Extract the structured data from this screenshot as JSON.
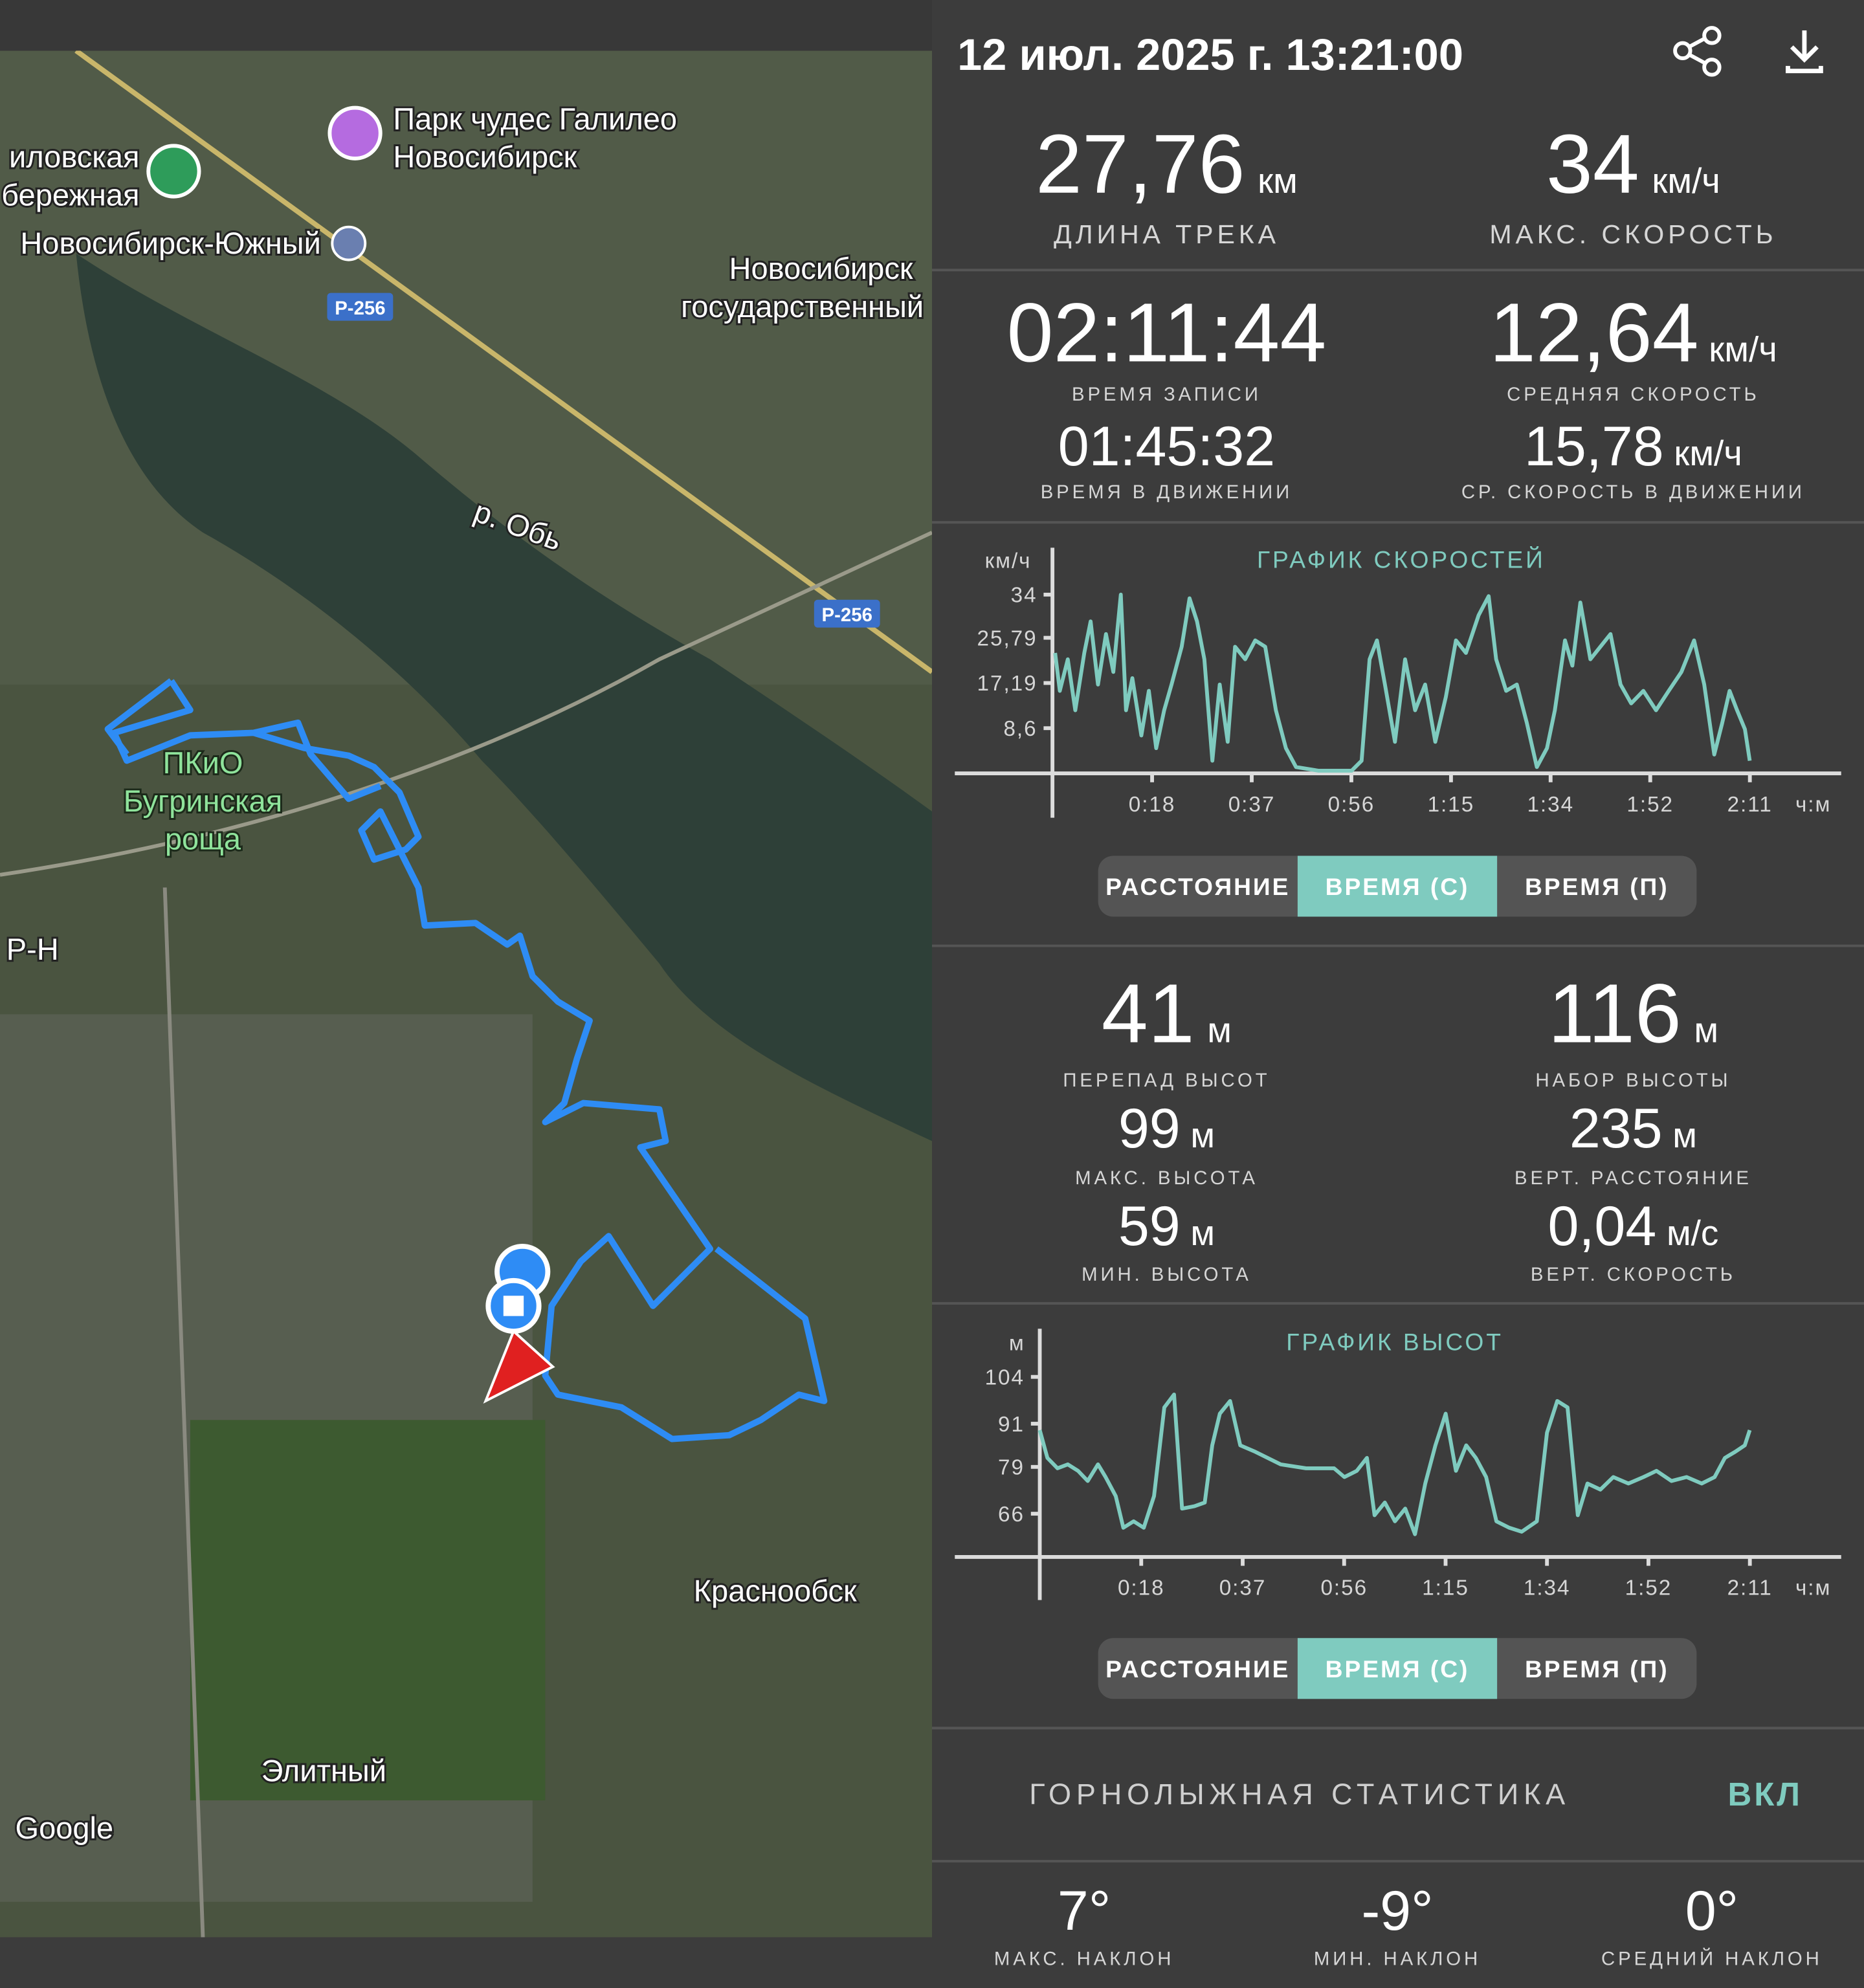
{
  "header": {
    "datetime": "12 июл. 2025 г. 13:21:00"
  },
  "map": {
    "labels": [
      "Парк чудес Галилео",
      "Новосибирск",
      "иловская",
      "бережная",
      "Новосибирск-Южный",
      "Новосибирск",
      "государственный",
      "Р-256",
      "Р-256",
      "р. Обь",
      "ПКиО",
      "Бугринская",
      "роща",
      "Р-Н",
      "Краснообск",
      "Элитный",
      "Google"
    ]
  },
  "summary": [
    {
      "value": "27,76",
      "unit": "км",
      "label": "ДЛИНА ТРЕКА"
    },
    {
      "value": "34",
      "unit": "км/ч",
      "label": "МАКС. СКОРОСТЬ"
    }
  ],
  "time_stats": [
    {
      "value": "02:11:44",
      "label": "ВРЕМЯ ЗАПИСИ"
    },
    {
      "value": "12,64",
      "unit": "км/ч",
      "label": "СРЕДНЯЯ СКОРОСТЬ"
    },
    {
      "value": "01:45:32",
      "label": "ВРЕМЯ В ДВИЖЕНИИ"
    },
    {
      "value": "15,78",
      "unit": "км/ч",
      "label": "СР. СКОРОСТЬ В ДВИЖЕНИИ"
    }
  ],
  "altitude_stats": [
    {
      "value": "41",
      "unit": "м",
      "label": "ПЕРЕПАД ВЫСОТ"
    },
    {
      "value": "116",
      "unit": "м",
      "label": "НАБОР ВЫСОТЫ"
    },
    {
      "value": "99",
      "unit": "м",
      "label": "МАКС. ВЫСОТА"
    },
    {
      "value": "235",
      "unit": "м",
      "label": "ВЕРТ. РАССТОЯНИЕ"
    },
    {
      "value": "59",
      "unit": "м",
      "label": "МИН. ВЫСОТА"
    },
    {
      "value": "0,04",
      "unit": "м/с",
      "label": "ВЕРТ. СКОРОСТЬ"
    }
  ],
  "toggles": [
    {
      "options": [
        "РАССТОЯНИЕ",
        "ВРЕМЯ (С)",
        "ВРЕМЯ (П)"
      ],
      "selected": 1
    },
    {
      "options": [
        "РАССТОЯНИЕ",
        "ВРЕМЯ (С)",
        "ВРЕМЯ (П)"
      ],
      "selected": 1
    }
  ],
  "chart_data": [
    {
      "type": "line",
      "title": "ГРАФИК СКОРОСТЕЙ",
      "y_label": "км/ч",
      "x_label": "ч:м",
      "color": "#7fcbbf",
      "xlim": [
        0,
        131.73
      ],
      "ylim": [
        0,
        34
      ],
      "xticks": [
        {
          "value": 18.82,
          "label": "0:18"
        },
        {
          "value": 37.64,
          "label": "0:37"
        },
        {
          "value": 56.46,
          "label": "0:56"
        },
        {
          "value": 75.28,
          "label": "1:15"
        },
        {
          "value": 94.09,
          "label": "1:34"
        },
        {
          "value": 112.91,
          "label": "1:52"
        },
        {
          "value": 131.73,
          "label": "2:11"
        }
      ],
      "yticks": [
        {
          "value": 8.6,
          "label": "8,6"
        },
        {
          "value": 17.19,
          "label": "17,19"
        },
        {
          "value": 25.79,
          "label": "25,79"
        },
        34
      ],
      "x": [
        0.5,
        1.4,
        2.9,
        4.3,
        6,
        7.2,
        8.6,
        10.1,
        11.5,
        12.9,
        13.9,
        15.1,
        16.8,
        18.2,
        19.6,
        21.1,
        22.5,
        24.4,
        25.9,
        27.3,
        28.7,
        30.2,
        31.6,
        33.1,
        34.5,
        36.4,
        38.3,
        40.2,
        42.2,
        44.1,
        46,
        50.3,
        56.5,
        58.4,
        59.9,
        61.3,
        62.8,
        64.7,
        66.6,
        68.5,
        70.4,
        72.3,
        74.3,
        76.2,
        78.1,
        80.5,
        82.4,
        83.8,
        85.7,
        87.7,
        89.6,
        91.5,
        93.4,
        94.9,
        96.8,
        98.2,
        99.7,
        101.6,
        103.5,
        105.4,
        107.3,
        109.3,
        111.6,
        114,
        116.4,
        118.8,
        121.2,
        123.1,
        125,
        126.5,
        127.9,
        129.3,
        130.8,
        131.7
      ],
      "values": [
        22.9,
        15.7,
        21.7,
        12,
        22.9,
        28.9,
        16.9,
        26.5,
        19.3,
        34,
        12,
        18.1,
        7.2,
        15.7,
        4.8,
        12,
        16.9,
        24.1,
        33.3,
        28.9,
        21.7,
        2.4,
        16.9,
        6,
        24.1,
        21.7,
        25.3,
        24.1,
        12,
        4.8,
        1.2,
        0.5,
        0.5,
        2.4,
        21.7,
        25.3,
        16.9,
        6,
        21.7,
        12,
        16.9,
        6,
        14.5,
        25.3,
        22.9,
        30.1,
        33.7,
        21.7,
        15.7,
        16.9,
        9.6,
        1.2,
        4.8,
        12,
        25.3,
        20.5,
        32.5,
        21.7,
        24.1,
        26.5,
        16.9,
        13.3,
        15.7,
        12,
        15.7,
        19.3,
        25.3,
        16.9,
        3.6,
        9.6,
        15.7,
        12,
        8.4,
        2.4
      ]
    },
    {
      "type": "line",
      "title": "ГРАФИК ВЫСОТ",
      "y_label": "м",
      "x_label": "ч:м",
      "color": "#7fcbbf",
      "xlim": [
        0,
        131.73
      ],
      "ylim": [
        54,
        104
      ],
      "xticks": [
        {
          "value": 18.82,
          "label": "0:18"
        },
        {
          "value": 37.64,
          "label": "0:37"
        },
        {
          "value": 56.46,
          "label": "0:56"
        },
        {
          "value": 75.28,
          "label": "1:15"
        },
        {
          "value": 94.09,
          "label": "1:34"
        },
        {
          "value": 112.91,
          "label": "1:52"
        },
        {
          "value": 131.73,
          "label": "2:11"
        }
      ],
      "yticks": [
        66,
        79,
        91,
        104
      ],
      "x": [
        0,
        1.4,
        3.3,
        5.2,
        7.1,
        8.9,
        10.8,
        12.2,
        14.1,
        15.5,
        17.4,
        19.3,
        21.2,
        23.1,
        24.9,
        26.4,
        28.7,
        30.6,
        32,
        33.4,
        35.3,
        37.2,
        40,
        44.7,
        49.4,
        54.6,
        56.5,
        58.8,
        60.7,
        62.1,
        64,
        65.9,
        67.8,
        69.6,
        71.5,
        73.4,
        75.3,
        77.2,
        79.1,
        80.9,
        82.8,
        84.7,
        87.1,
        89.4,
        92.2,
        94.1,
        96,
        97.9,
        99.8,
        101.6,
        104,
        106.4,
        109.2,
        112,
        114.4,
        117.2,
        120,
        122.8,
        125.2,
        127.1,
        129,
        130.8,
        131.7
      ],
      "values": [
        89.2,
        81.5,
        78.6,
        79.7,
        77.9,
        75.1,
        79.7,
        76.2,
        70.9,
        62.1,
        63.9,
        62.1,
        70.9,
        95.5,
        99.1,
        67.4,
        68.1,
        69.1,
        85,
        93.8,
        97.3,
        85,
        83.2,
        79.7,
        78.6,
        78.6,
        76.2,
        77.9,
        81.5,
        65.6,
        69.1,
        63.9,
        67.4,
        60.3,
        74.4,
        85,
        93.8,
        77.9,
        85,
        81.5,
        76.2,
        63.9,
        62.1,
        61,
        63.9,
        88.5,
        97.3,
        95.5,
        65.6,
        74.4,
        72.7,
        76.2,
        74.4,
        76.2,
        77.9,
        75.1,
        76.2,
        74.4,
        76.2,
        81.5,
        83.2,
        85,
        89.2
      ]
    }
  ],
  "ski": {
    "title": "ГОРНОЛЫЖНАЯ СТАТИСТИКА",
    "toggle": "ВКЛ",
    "stats": [
      {
        "value": "7°",
        "label": "МАКС. НАКЛОН"
      },
      {
        "value": "-9°",
        "label": "МИН. НАКЛОН"
      },
      {
        "value": "0°",
        "label": "СРЕДНИЙ НАКЛОН"
      }
    ]
  }
}
